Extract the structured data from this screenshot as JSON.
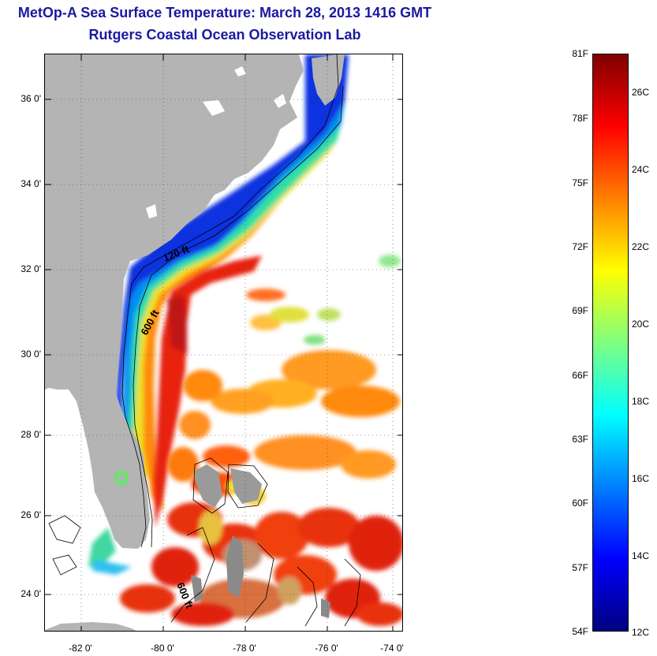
{
  "title": "MetOp-A Sea Surface Temperature:  March 28, 2013 1416 GMT",
  "subtitle": "Rutgers Coastal Ocean Observation Lab",
  "map": {
    "lat_ticks": [
      "36 0'",
      "34 0'",
      "32 0'",
      "30 0'",
      "28 0'",
      "26 0'",
      "24 0'"
    ],
    "lon_ticks": [
      "-82 0'",
      "-80 0'",
      "-78 0'",
      "-76 0'",
      "-74 0'"
    ],
    "contour_labels": [
      "120 ft",
      "600 ft",
      "600 ft"
    ],
    "colors": {
      "land": "#b4b4b4",
      "no_data": "#ffffff"
    }
  },
  "colorbar": {
    "fahrenheit": [
      "81F",
      "78F",
      "75F",
      "72F",
      "69F",
      "66F",
      "63F",
      "60F",
      "57F",
      "54F"
    ],
    "celsius": [
      "26C",
      "24C",
      "22C",
      "20C",
      "18C",
      "16C",
      "14C",
      "12C"
    ],
    "colormap": [
      "#00007f",
      "#0000ff",
      "#007fff",
      "#00ffff",
      "#7fff7f",
      "#ffff00",
      "#ff7f00",
      "#ff0000",
      "#7f0000"
    ]
  }
}
